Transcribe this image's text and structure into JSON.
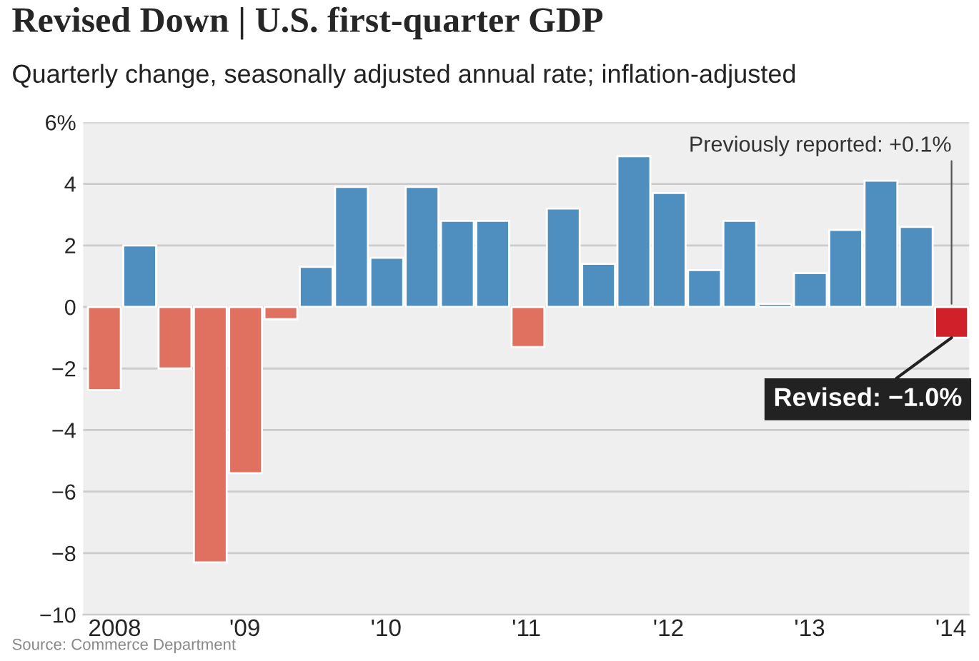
{
  "chart_data": {
    "type": "bar",
    "title": "Revised Down | U.S. first-quarter GDP",
    "subtitle": "Quarterly change, seasonally adjusted annual rate; inflation-adjusted",
    "categories": [
      "2008",
      null,
      null,
      null,
      "'09",
      null,
      null,
      null,
      "'10",
      null,
      null,
      null,
      "'11",
      null,
      null,
      null,
      "'12",
      null,
      null,
      null,
      "'13",
      null,
      null,
      null,
      "'14"
    ],
    "values": [
      -2.7,
      2.0,
      -2.0,
      -8.3,
      -5.4,
      -0.4,
      1.3,
      3.9,
      1.6,
      3.9,
      2.8,
      2.8,
      -1.3,
      3.2,
      1.4,
      4.9,
      3.7,
      1.2,
      2.8,
      0.1,
      1.1,
      2.5,
      4.1,
      2.6,
      -1.0
    ],
    "colors": [
      "#e07060",
      "#4f8fc0",
      "#e07060",
      "#e07060",
      "#e07060",
      "#e07060",
      "#4f8fc0",
      "#4f8fc0",
      "#4f8fc0",
      "#4f8fc0",
      "#4f8fc0",
      "#4f8fc0",
      "#e07060",
      "#4f8fc0",
      "#4f8fc0",
      "#4f8fc0",
      "#4f8fc0",
      "#4f8fc0",
      "#4f8fc0",
      "#4f8fc0",
      "#4f8fc0",
      "#4f8fc0",
      "#4f8fc0",
      "#4f8fc0",
      "#d0202a"
    ],
    "ylim": [
      -10,
      6
    ],
    "yticks": [
      {
        "value": 6,
        "label": "6%"
      },
      4,
      2,
      0,
      {
        "value": -2,
        "label": "−2"
      },
      {
        "value": -4,
        "label": "−4"
      },
      {
        "value": -6,
        "label": "−6"
      },
      {
        "value": -8,
        "label": "−8"
      },
      {
        "value": -10,
        "label": "−10"
      }
    ],
    "grid": "y",
    "annotations": [
      {
        "text": "Previously reported: +0.1%",
        "x": "'14",
        "y": 0.1
      },
      {
        "text": "Revised: −1.0%",
        "x": "'14",
        "y": -1.0
      },
      "Source: Commerce Department"
    ]
  }
}
